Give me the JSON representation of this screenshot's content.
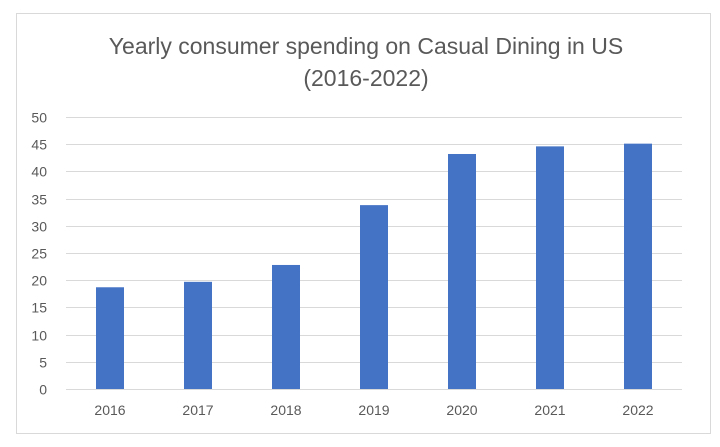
{
  "chart_data": {
    "type": "bar",
    "title_lines": [
      "Yearly consumer spending on Casual Dining in US",
      "(2016-2022)"
    ],
    "categories": [
      "2016",
      "2017",
      "2018",
      "2019",
      "2020",
      "2021",
      "2022"
    ],
    "values": [
      18.7,
      19.7,
      22.8,
      33.8,
      43.2,
      44.6,
      45.1
    ],
    "ylim": [
      0,
      50
    ],
    "yticks": [
      0,
      5,
      10,
      15,
      20,
      25,
      30,
      35,
      40,
      45,
      50
    ],
    "grid": true,
    "legend": "none",
    "bar_color": "#4472C4",
    "grid_color": "#D9D9D9",
    "text_color": "#595959",
    "border_color": "#D9D9D9"
  }
}
